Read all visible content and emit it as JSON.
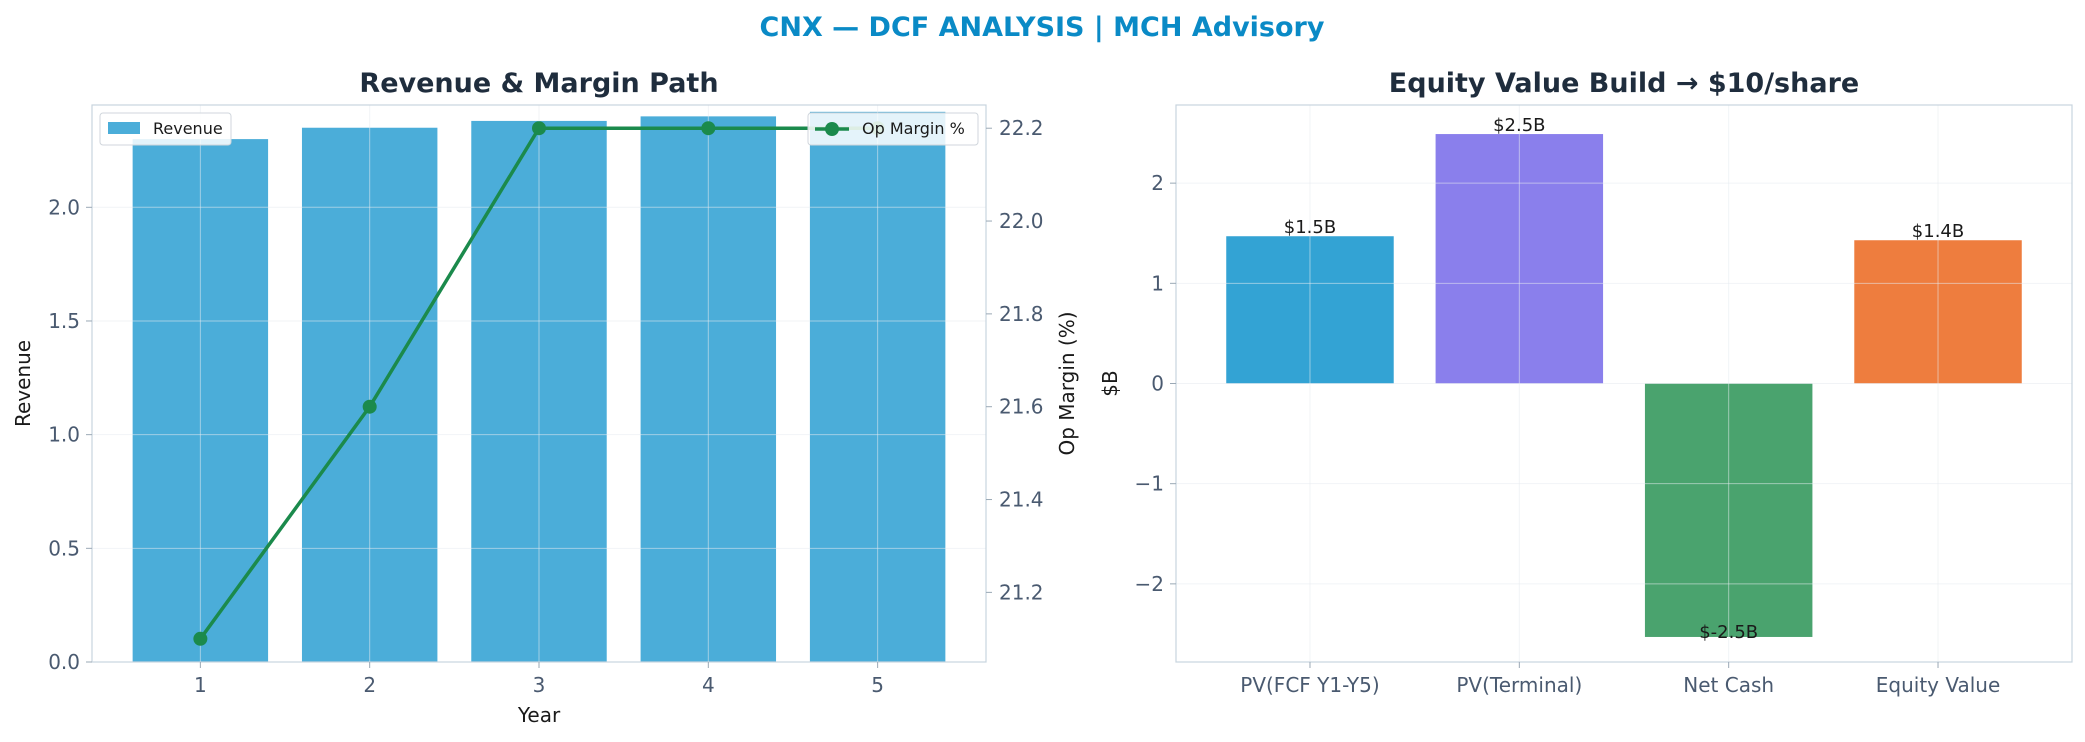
{
  "figure_title": "CNX — DCF ANALYSIS | MCH Advisory",
  "title_color": "#0a8ac6",
  "chart_data": [
    {
      "type": "bar",
      "title": "Revenue & Margin Path",
      "xlabel": "Year",
      "ylabel": "Revenue",
      "y2label": "Op Margin (%)",
      "categories": [
        "1",
        "2",
        "3",
        "4",
        "5"
      ],
      "ylim": [
        0,
        2.45
      ],
      "yticks": [
        0.0,
        0.5,
        1.0,
        1.5,
        2.0
      ],
      "ytick_labels": [
        "0.0",
        "0.5",
        "1.0",
        "1.5",
        "2.0"
      ],
      "y2lim": [
        21.05,
        22.25
      ],
      "y2ticks": [
        21.2,
        21.4,
        21.6,
        21.8,
        22.0,
        22.2
      ],
      "y2tick_labels": [
        "21.2",
        "21.4",
        "21.6",
        "21.8",
        "22.0",
        "22.2"
      ],
      "grid": true,
      "series": [
        {
          "name": "Revenue",
          "kind": "bar",
          "axis": "left",
          "color": "#4badd9",
          "values": [
            2.3,
            2.35,
            2.38,
            2.4,
            2.42
          ]
        },
        {
          "name": "Op Margin %",
          "kind": "line",
          "axis": "right",
          "color": "#1b8a4c",
          "values": [
            21.1,
            21.6,
            22.2,
            22.2,
            22.2
          ]
        }
      ],
      "legend": [
        {
          "label": "Revenue",
          "placement": "top-left"
        },
        {
          "label": "Op Margin %",
          "placement": "top-right"
        }
      ]
    },
    {
      "type": "bar",
      "title": "Equity Value Build → $10/share",
      "xlabel": "",
      "ylabel": "$B",
      "categories": [
        "PV(FCF Y1-Y5)",
        "PV(Terminal)",
        "Net Cash",
        "Equity Value"
      ],
      "values": [
        1.47,
        2.49,
        -2.53,
        1.43
      ],
      "data_labels": [
        "$1.5B",
        "$2.5B",
        "$-2.5B",
        "$1.4B"
      ],
      "colors": [
        "#33a3d4",
        "#8a7fec",
        "#4aa36e",
        "#ee7d3e"
      ],
      "ylim": [
        -2.78,
        2.78
      ],
      "yticks": [
        -2,
        -1,
        0,
        1,
        2
      ],
      "ytick_labels": [
        "−2",
        "−1",
        "0",
        "1",
        "2"
      ],
      "grid": true
    }
  ]
}
